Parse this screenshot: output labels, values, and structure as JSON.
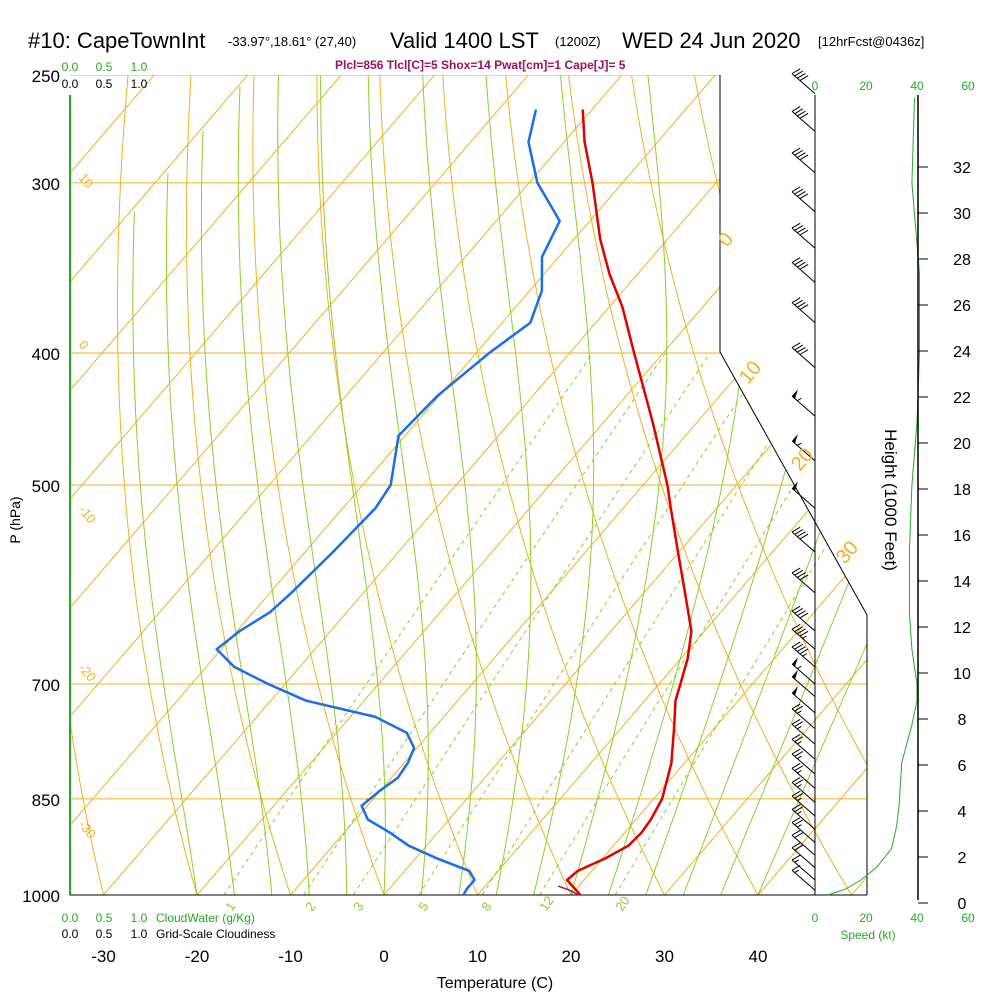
{
  "header": {
    "station": "#10: CapeTownInt",
    "coords": "-33.97°,18.61° (27,40)",
    "valid": "Valid 1400 LST",
    "zulu": "(1200Z)",
    "date": "WED 24 Jun 2020",
    "forecast": "[12hrFcst@0436z]"
  },
  "indices_line": "Plcl=856 Tlcl[C]=5 Shox=14 Pwat[cm]=1 Cape[J]= 5",
  "colors": {
    "temperature": "#e00000",
    "dewpoint": "#1a6ee8",
    "isotherm": "#f0b020",
    "dry_adiabat": "#f0b020",
    "moist_adiabat": "#8ccf2a",
    "mixing_ratio": "#8ccf2a",
    "cloud_scale": "#22aa22",
    "wind_speed_line": "#22aa22",
    "indices_text": "#a0105a"
  },
  "scales": {
    "cloudwater_ticks": [
      "0.0",
      "0.5",
      "1.0"
    ],
    "cloudwater_label": "CloudWater (g/Kg)",
    "cloudiness_ticks": [
      "0.0",
      "0.5",
      "1.0"
    ],
    "cloudiness_label": "Grid-Scale Cloudiness",
    "speed_ticks": [
      "0",
      "20",
      "40",
      "60"
    ],
    "speed_label": "Speed (kt)"
  },
  "chart_data": {
    "type": "line",
    "diagram": "skew-t log-p",
    "xlabel": "Temperature (C)",
    "ylabel": "P (hPa)",
    "y2label": "Height (1000 Feet)",
    "x_ticks": [
      "-30",
      "-20",
      "-10",
      "0",
      "10",
      "20",
      "30",
      "40"
    ],
    "p_ticks": [
      "250",
      "300",
      "400",
      "500",
      "700",
      "850",
      "1000"
    ],
    "height_ticks": [
      "0",
      "2",
      "4",
      "6",
      "8",
      "10",
      "12",
      "14",
      "16",
      "18",
      "20",
      "22",
      "24",
      "26",
      "28",
      "30",
      "32"
    ],
    "xlim": [
      -35,
      45
    ],
    "plim": [
      1000,
      250
    ],
    "dry_adiabat_labels": [
      "10",
      "0",
      "-10",
      "-20",
      "-30",
      "0",
      "10",
      "20",
      "30"
    ],
    "mixing_ratio_labels": [
      "1",
      "2",
      "3",
      "5",
      "8",
      "12",
      "20"
    ],
    "series": [
      {
        "kind": "temperature",
        "points": [
          [
            1000,
            21
          ],
          [
            990,
            19.9
          ],
          [
            975,
            18.2
          ],
          [
            960,
            18.5
          ],
          [
            940,
            20.3
          ],
          [
            920,
            21.6
          ],
          [
            900,
            21.8
          ],
          [
            880,
            21.6
          ],
          [
            850,
            20.9
          ],
          [
            800,
            18.6
          ],
          [
            750,
            15.4
          ],
          [
            720,
            13.3
          ],
          [
            700,
            12.3
          ],
          [
            670,
            10.7
          ],
          [
            640,
            8.6
          ],
          [
            600,
            4.4
          ],
          [
            560,
            -0.1
          ],
          [
            520,
            -4.9
          ],
          [
            500,
            -7.4
          ],
          [
            450,
            -14.7
          ],
          [
            400,
            -23.1
          ],
          [
            370,
            -28.6
          ],
          [
            350,
            -33.0
          ],
          [
            330,
            -37.2
          ],
          [
            300,
            -43.2
          ],
          [
            280,
            -47.8
          ],
          [
            265,
            -51.0
          ]
        ]
      },
      {
        "kind": "dewpoint",
        "points": [
          [
            1000,
            8.5
          ],
          [
            990,
            8.3
          ],
          [
            975,
            8.3
          ],
          [
            960,
            6.9
          ],
          [
            940,
            2.3
          ],
          [
            920,
            -1.9
          ],
          [
            900,
            -5.1
          ],
          [
            880,
            -8.7
          ],
          [
            860,
            -10.6
          ],
          [
            840,
            -10.1
          ],
          [
            820,
            -9.3
          ],
          [
            800,
            -9.6
          ],
          [
            780,
            -10.3
          ],
          [
            760,
            -12.5
          ],
          [
            740,
            -17.3
          ],
          [
            720,
            -26.2
          ],
          [
            700,
            -31.8
          ],
          [
            680,
            -37.0
          ],
          [
            660,
            -40.5
          ],
          [
            640,
            -39.7
          ],
          [
            620,
            -38.2
          ],
          [
            600,
            -37.7
          ],
          [
            560,
            -37.0
          ],
          [
            520,
            -36.5
          ],
          [
            500,
            -37.0
          ],
          [
            460,
            -40.7
          ],
          [
            430,
            -40.2
          ],
          [
            400,
            -38.6
          ],
          [
            380,
            -37.0
          ],
          [
            360,
            -38.7
          ],
          [
            340,
            -41.8
          ],
          [
            320,
            -43.2
          ],
          [
            300,
            -49.1
          ],
          [
            280,
            -53.8
          ],
          [
            265,
            -56.0
          ]
        ]
      }
    ],
    "surface_markers": {
      "temperature": 20.8,
      "dewpoint": 10.8
    },
    "wind_barbs_kt": [
      {
        "p": 992,
        "spd": 15
      },
      {
        "p": 975,
        "spd": 15
      },
      {
        "p": 955,
        "spd": 20
      },
      {
        "p": 935,
        "spd": 20
      },
      {
        "p": 915,
        "spd": 25
      },
      {
        "p": 895,
        "spd": 25
      },
      {
        "p": 875,
        "spd": 25
      },
      {
        "p": 855,
        "spd": 25
      },
      {
        "p": 835,
        "spd": 25
      },
      {
        "p": 815,
        "spd": 25
      },
      {
        "p": 795,
        "spd": 25
      },
      {
        "p": 775,
        "spd": 25
      },
      {
        "p": 755,
        "spd": 25
      },
      {
        "p": 735,
        "spd": 50
      },
      {
        "p": 715,
        "spd": 50
      },
      {
        "p": 700,
        "spd": 55
      },
      {
        "p": 680,
        "spd": 45
      },
      {
        "p": 660,
        "spd": 45
      },
      {
        "p": 640,
        "spd": 40
      },
      {
        "p": 600,
        "spd": 40
      },
      {
        "p": 560,
        "spd": 40
      },
      {
        "p": 520,
        "spd": 50
      },
      {
        "p": 480,
        "spd": 55
      },
      {
        "p": 445,
        "spd": 55
      },
      {
        "p": 410,
        "spd": 40
      },
      {
        "p": 380,
        "spd": 40
      },
      {
        "p": 355,
        "spd": 40
      },
      {
        "p": 335,
        "spd": 40
      },
      {
        "p": 315,
        "spd": 40
      },
      {
        "p": 295,
        "spd": 40
      },
      {
        "p": 275,
        "spd": 40
      },
      {
        "p": 258,
        "spd": 40
      }
    ],
    "wind_speed_profile": [
      [
        1000,
        5
      ],
      [
        990,
        12
      ],
      [
        975,
        18
      ],
      [
        955,
        24
      ],
      [
        925,
        30
      ],
      [
        890,
        32
      ],
      [
        860,
        33
      ],
      [
        800,
        34
      ],
      [
        750,
        38
      ],
      [
        720,
        40
      ],
      [
        700,
        40
      ],
      [
        660,
        38
      ],
      [
        620,
        37
      ],
      [
        560,
        37
      ],
      [
        500,
        38
      ],
      [
        450,
        40
      ],
      [
        400,
        41
      ],
      [
        350,
        41
      ],
      [
        300,
        38
      ],
      [
        260,
        39
      ]
    ]
  }
}
